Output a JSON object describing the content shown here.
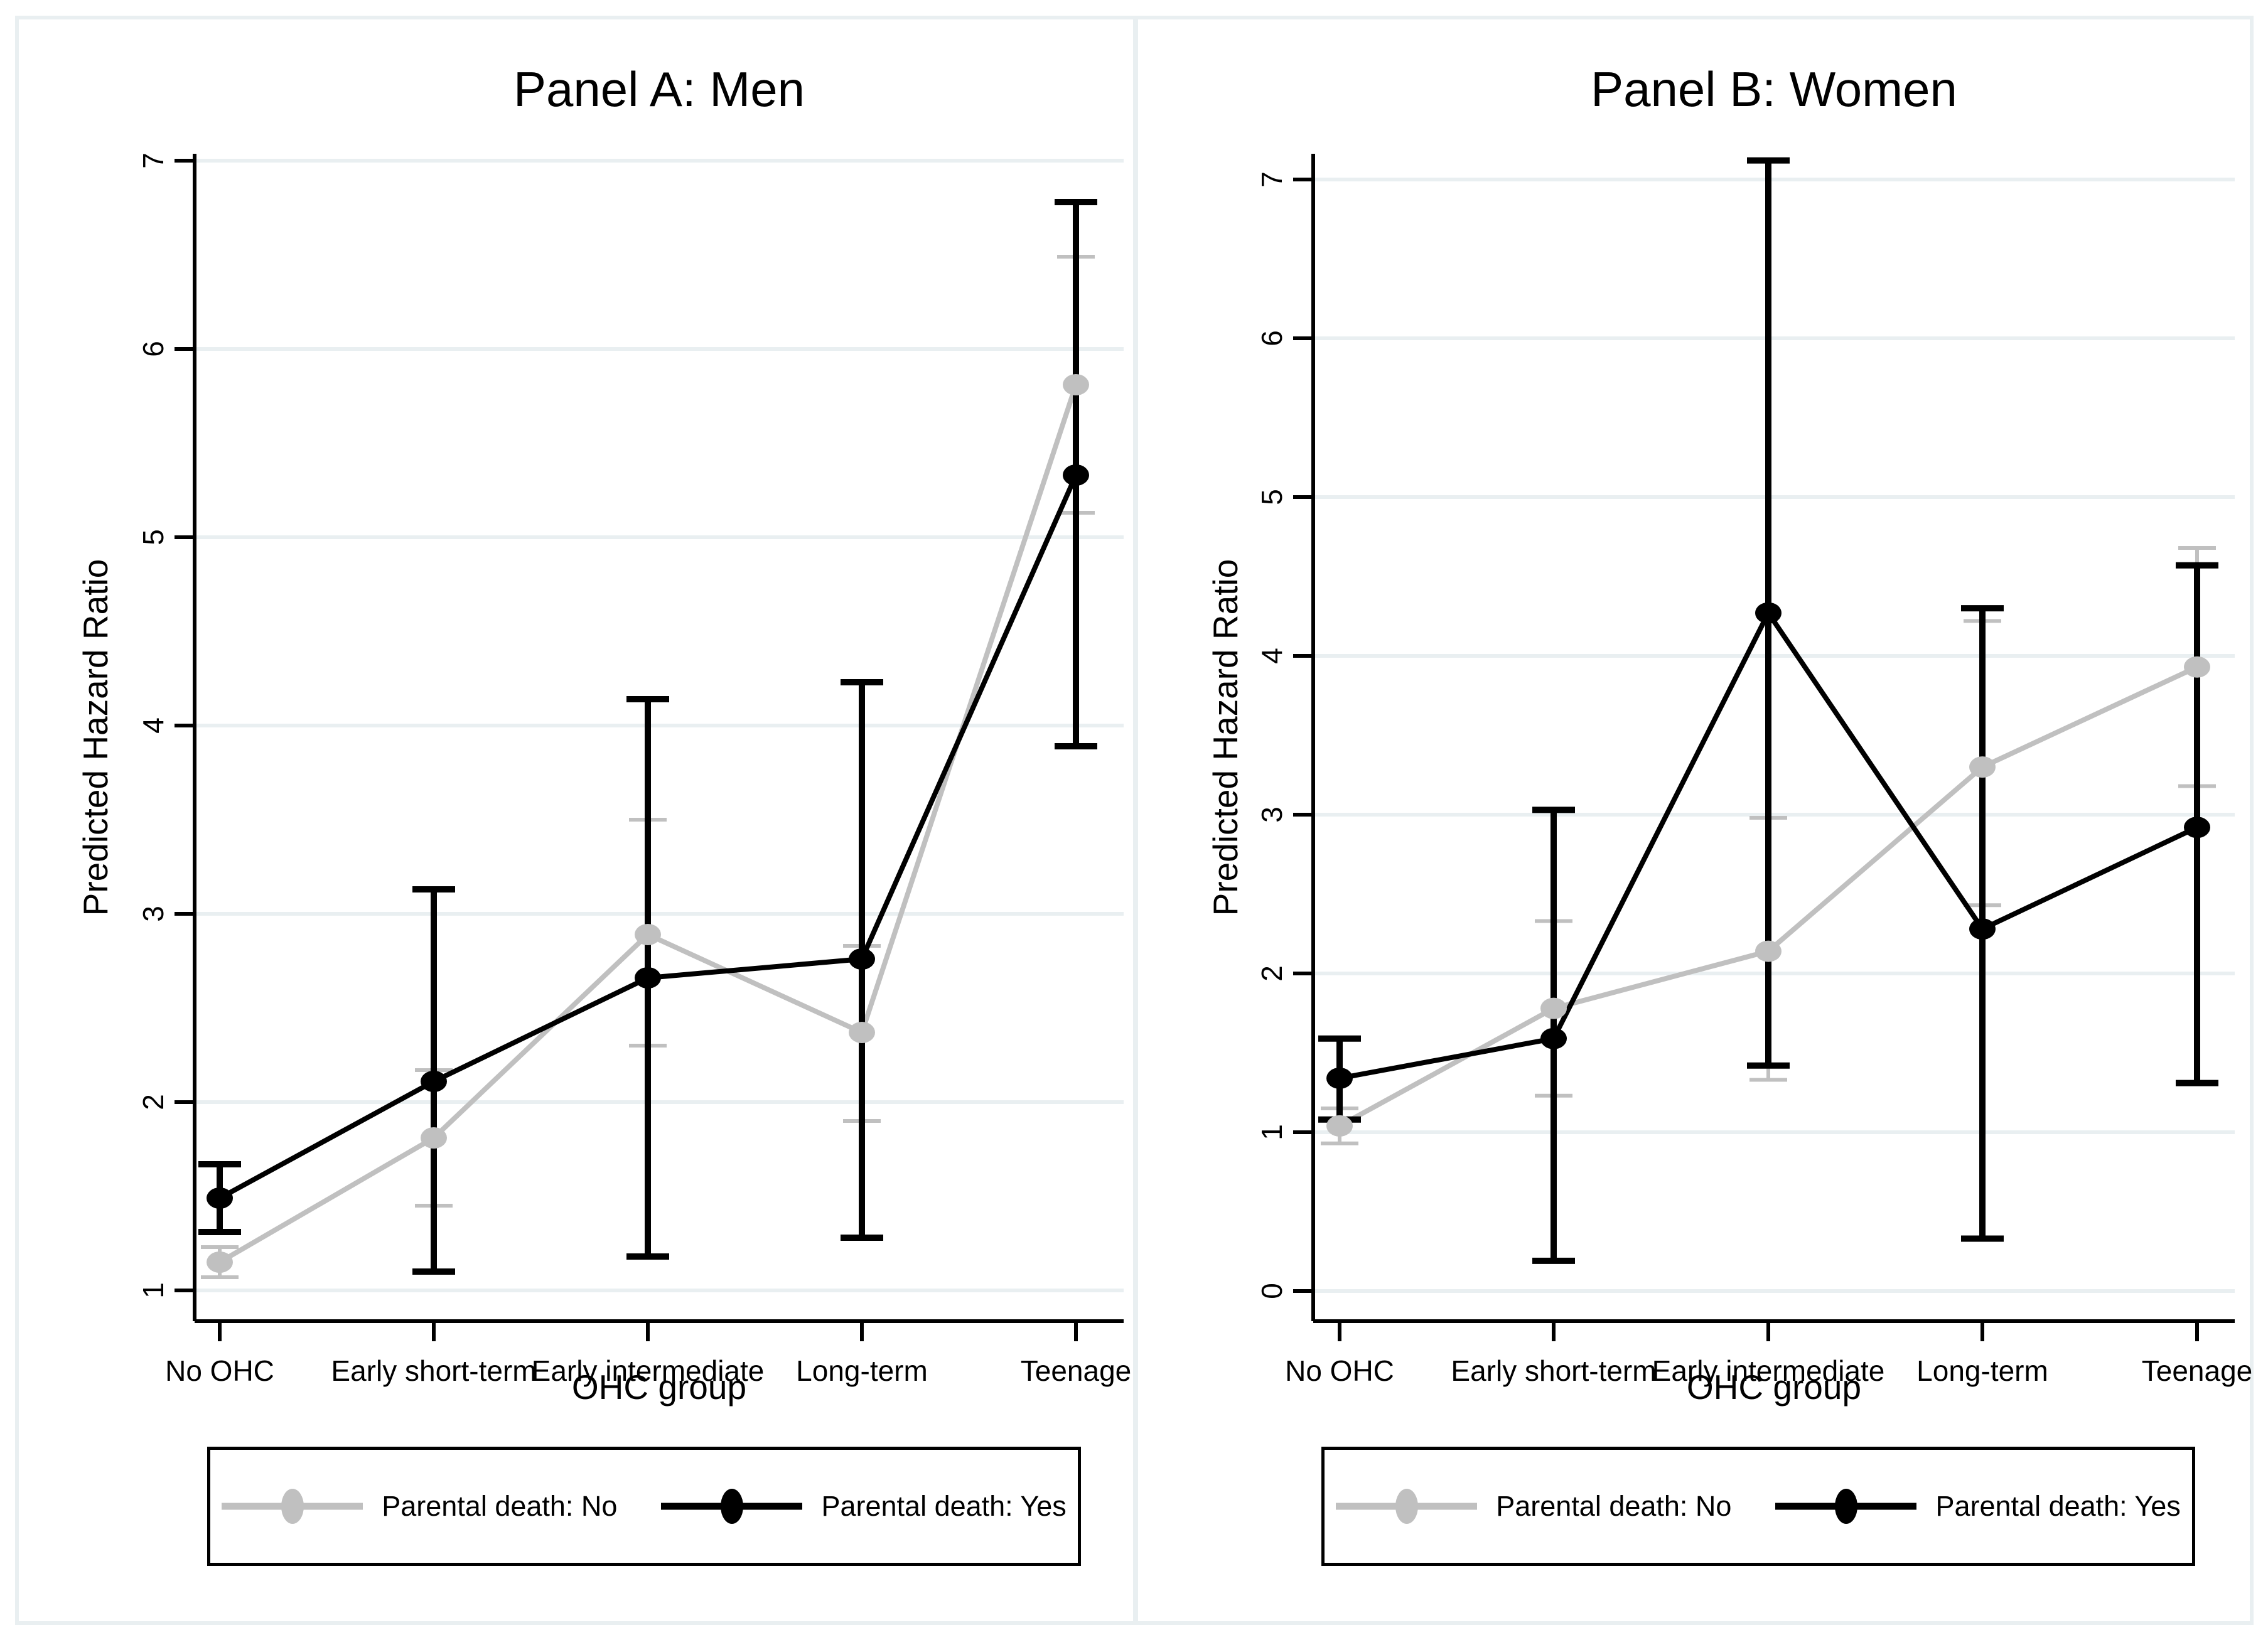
{
  "figure": {
    "background_color": "#ffffff",
    "frame_color": "#e9eff1",
    "axis_color": "#000000",
    "grid_color": "#e9eff1"
  },
  "chart_data": [
    {
      "type": "line",
      "panel": "A",
      "title": "Panel A: Men",
      "xlabel": "OHC group",
      "ylabel": "Predicted Hazard Ratio",
      "categories": [
        "No OHC",
        "Early short-term",
        "Early intermediate",
        "Long-term",
        "Teenage"
      ],
      "yticks": [
        1,
        2,
        3,
        4,
        5,
        6,
        7
      ],
      "ylim": [
        0.84,
        7.04
      ],
      "grid": true,
      "legend_position": "bottom-boxed",
      "series": [
        {
          "name": "Parental death: No",
          "color": "#c0c0c0",
          "values": [
            1.15,
            1.81,
            2.89,
            2.37,
            5.81
          ],
          "ci_low": [
            1.07,
            1.45,
            2.3,
            1.9,
            5.13
          ],
          "ci_high": [
            1.23,
            2.17,
            3.5,
            2.83,
            6.49
          ]
        },
        {
          "name": "Parental death: Yes",
          "color": "#000000",
          "values": [
            1.49,
            2.11,
            2.66,
            2.76,
            5.33
          ],
          "ci_low": [
            1.31,
            1.1,
            1.18,
            1.28,
            3.89
          ],
          "ci_high": [
            1.67,
            3.13,
            4.14,
            4.23,
            6.78
          ]
        }
      ]
    },
    {
      "type": "line",
      "panel": "B",
      "title": "Panel B: Women",
      "xlabel": "OHC group",
      "ylabel": "Predicted Hazard Ratio",
      "categories": [
        "No OHC",
        "Early short-term",
        "Early intermediate",
        "Long-term",
        "Teenage"
      ],
      "yticks": [
        0,
        1,
        2,
        3,
        4,
        5,
        6,
        7
      ],
      "ylim": [
        -0.19,
        7.16
      ],
      "grid": true,
      "legend_position": "bottom-boxed",
      "series": [
        {
          "name": "Parental death: No",
          "color": "#c0c0c0",
          "values": [
            1.04,
            1.78,
            2.14,
            3.3,
            3.93
          ],
          "ci_low": [
            0.93,
            1.23,
            1.33,
            2.43,
            3.18
          ],
          "ci_high": [
            1.15,
            2.33,
            2.98,
            4.22,
            4.68
          ]
        },
        {
          "name": "Parental death: Yes",
          "color": "#000000",
          "values": [
            1.34,
            1.59,
            4.27,
            2.28,
            2.92
          ],
          "ci_low": [
            1.08,
            0.19,
            1.42,
            0.33,
            1.31
          ],
          "ci_high": [
            1.59,
            3.03,
            7.12,
            4.3,
            4.57
          ]
        }
      ]
    }
  ]
}
